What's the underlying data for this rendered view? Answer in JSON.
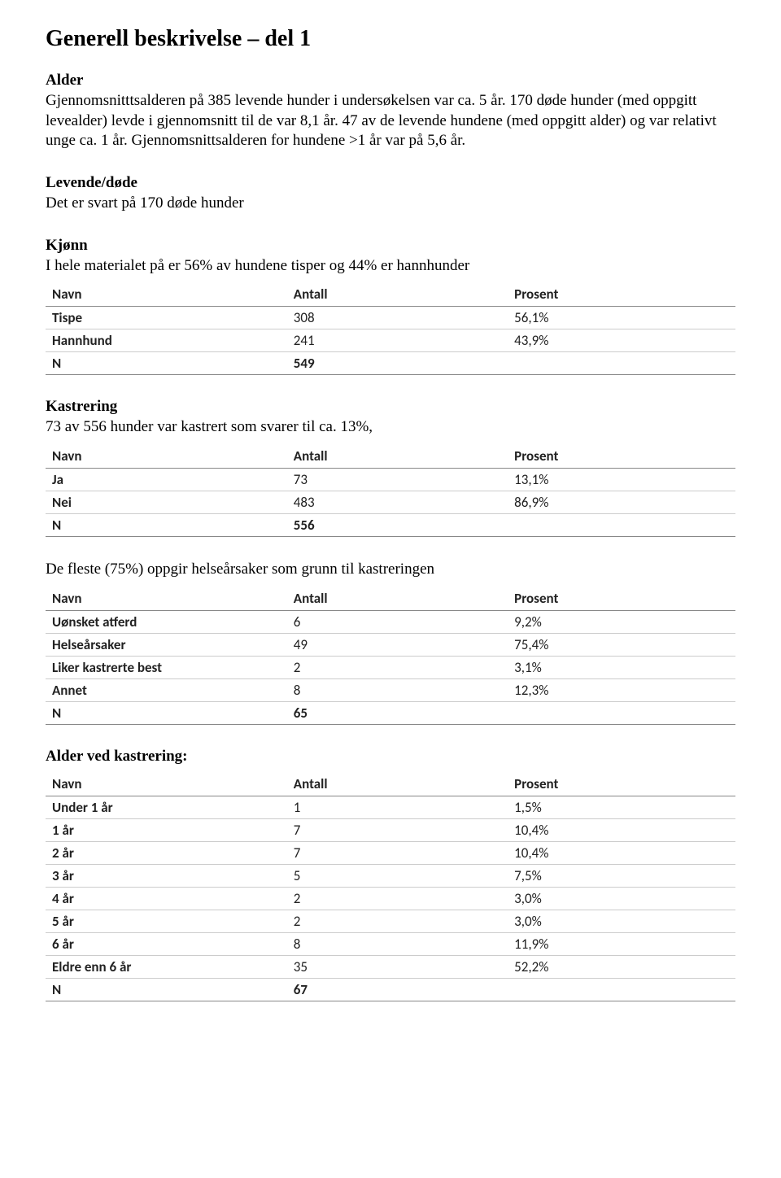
{
  "title": "Generell beskrivelse – del 1",
  "sections": {
    "alder": {
      "heading": "Alder",
      "body": "Gjennomsnitttsalderen på 385 levende hunder i undersøkelsen var ca. 5 år. 170 døde hunder (med oppgitt levealder) levde i gjennomsnitt til de var  8,1 år. 47 av de levende hundene (med oppgitt alder) og var relativt unge ca. 1 år. Gjennomsnittsalderen for hundene >1 år var på 5,6 år."
    },
    "levende": {
      "heading": "Levende/døde",
      "body": "Det er svart på 170 døde hunder"
    },
    "kjonn": {
      "heading": "Kjønn",
      "body": "I hele materialet på er 56% av hundene tisper og 44% er hannhunder"
    },
    "kastrering": {
      "heading": "Kastrering",
      "body": "73 av 556 hunder var kastrert som svarer til ca. 13%,"
    },
    "kastrering_grunn": {
      "body": "De fleste (75%) oppgir helseårsaker som grunn til kastreringen"
    },
    "alder_kastrering": {
      "heading": "Alder ved kastrering:"
    }
  },
  "table_headers": {
    "name": "Navn",
    "count": "Antall",
    "pct": "Prosent"
  },
  "tables": {
    "kjonn": {
      "rows": [
        {
          "label": "Tispe",
          "count": "308",
          "pct": "56,1%"
        },
        {
          "label": "Hannhund",
          "count": "241",
          "pct": "43,9%"
        }
      ],
      "total": {
        "label": "N",
        "count": "549",
        "pct": ""
      }
    },
    "kastrering": {
      "rows": [
        {
          "label": "Ja",
          "count": "73",
          "pct": "13,1%"
        },
        {
          "label": "Nei",
          "count": "483",
          "pct": "86,9%"
        }
      ],
      "total": {
        "label": "N",
        "count": "556",
        "pct": ""
      }
    },
    "grunn": {
      "rows": [
        {
          "label": "Uønsket atferd",
          "count": "6",
          "pct": "9,2%"
        },
        {
          "label": "Helseårsaker",
          "count": "49",
          "pct": "75,4%"
        },
        {
          "label": "Liker kastrerte best",
          "count": "2",
          "pct": "3,1%"
        },
        {
          "label": "Annet",
          "count": "8",
          "pct": "12,3%"
        }
      ],
      "total": {
        "label": "N",
        "count": "65",
        "pct": ""
      }
    },
    "alder_k": {
      "rows": [
        {
          "label": "Under 1 år",
          "count": "1",
          "pct": "1,5%"
        },
        {
          "label": "1 år",
          "count": "7",
          "pct": "10,4%"
        },
        {
          "label": "2 år",
          "count": "7",
          "pct": "10,4%"
        },
        {
          "label": "3 år",
          "count": "5",
          "pct": "7,5%"
        },
        {
          "label": "4 år",
          "count": "2",
          "pct": "3,0%"
        },
        {
          "label": "5 år",
          "count": "2",
          "pct": "3,0%"
        },
        {
          "label": "6 år",
          "count": "8",
          "pct": "11,9%"
        },
        {
          "label": "Eldre enn 6 år",
          "count": "35",
          "pct": "52,2%"
        }
      ],
      "total": {
        "label": "N",
        "count": "67",
        "pct": ""
      }
    }
  }
}
